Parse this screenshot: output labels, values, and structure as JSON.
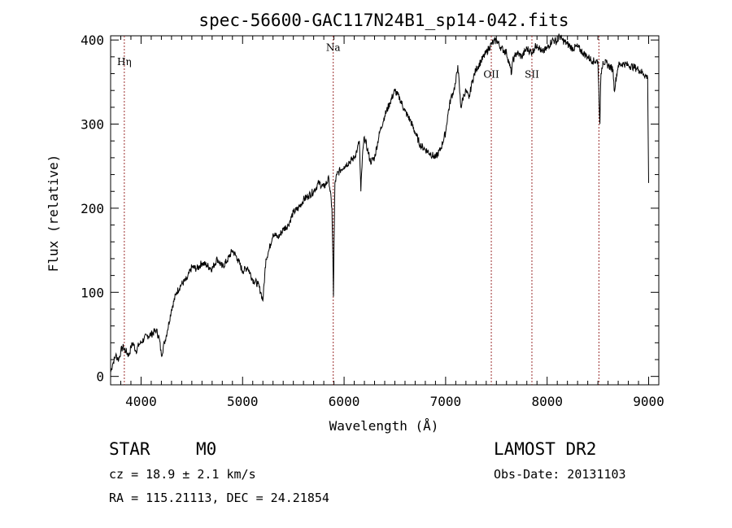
{
  "chart_data": {
    "type": "line",
    "title": "spec-56600-GAC117N24B1_sp14-042.fits",
    "xlabel": "Wavelength (Å)",
    "ylabel": "Flux (relative)",
    "xlim": [
      3700,
      9100
    ],
    "ylim": [
      -10,
      405
    ],
    "xticks": [
      4000,
      5000,
      6000,
      7000,
      8000,
      9000
    ],
    "xtick_labels": [
      "4000",
      "5000",
      "6000",
      "7000",
      "8000",
      "9000"
    ],
    "yticks": [
      0,
      100,
      200,
      300,
      400
    ],
    "ytick_labels": [
      "0",
      "100",
      "200",
      "300",
      "400"
    ],
    "grid": false,
    "line_color": "#000000",
    "marker_color": "#9b2d2d",
    "lines": [
      {
        "name": "Hη",
        "x": 3835,
        "label_y": 370
      },
      {
        "name": "Na",
        "x": 5893,
        "label_y": 387
      },
      {
        "name": "OII",
        "x": 7450,
        "label_y": 355
      },
      {
        "name": "SII",
        "x": 7850,
        "label_y": 355
      },
      {
        "name": "",
        "x": 8510,
        "label_y": 355
      }
    ],
    "series": [
      {
        "name": "flux",
        "x": [
          3700,
          3720,
          3750,
          3780,
          3800,
          3820,
          3850,
          3880,
          3900,
          3920,
          3950,
          3980,
          4000,
          4030,
          4060,
          4100,
          4150,
          4180,
          4200,
          4230,
          4260,
          4300,
          4350,
          4400,
          4450,
          4500,
          4550,
          4600,
          4650,
          4700,
          4750,
          4800,
          4850,
          4900,
          4950,
          5000,
          5050,
          5100,
          5150,
          5180,
          5200,
          5230,
          5260,
          5300,
          5350,
          5400,
          5450,
          5500,
          5550,
          5600,
          5650,
          5700,
          5750,
          5800,
          5850,
          5880,
          5890,
          5895,
          5900,
          5910,
          5930,
          5960,
          6000,
          6050,
          6100,
          6130,
          6150,
          6165,
          6180,
          6200,
          6230,
          6260,
          6300,
          6350,
          6400,
          6450,
          6500,
          6550,
          6600,
          6650,
          6700,
          6750,
          6800,
          6850,
          6900,
          6950,
          7000,
          7020,
          7050,
          7080,
          7100,
          7120,
          7150,
          7180,
          7200,
          7230,
          7260,
          7300,
          7350,
          7400,
          7450,
          7500,
          7550,
          7600,
          7630,
          7650,
          7660,
          7680,
          7700,
          7750,
          7800,
          7850,
          7900,
          7950,
          8000,
          8050,
          8100,
          8120,
          8150,
          8200,
          8250,
          8300,
          8350,
          8400,
          8450,
          8500,
          8520,
          8530,
          8550,
          8600,
          8650,
          8660,
          8700,
          8750,
          8800,
          8850,
          8900,
          8950,
          8990,
          9000
        ],
        "y": [
          5,
          15,
          25,
          20,
          30,
          35,
          30,
          25,
          35,
          40,
          30,
          38,
          40,
          45,
          48,
          50,
          55,
          45,
          25,
          40,
          55,
          80,
          100,
          110,
          115,
          130,
          128,
          135,
          132,
          128,
          140,
          130,
          138,
          150,
          140,
          125,
          130,
          115,
          110,
          100,
          90,
          140,
          150,
          170,
          165,
          175,
          180,
          195,
          200,
          210,
          215,
          220,
          230,
          225,
          235,
          200,
          140,
          95,
          150,
          230,
          240,
          245,
          250,
          255,
          260,
          270,
          280,
          220,
          260,
          285,
          270,
          255,
          260,
          290,
          310,
          325,
          340,
          330,
          315,
          305,
          290,
          275,
          270,
          265,
          260,
          270,
          290,
          310,
          330,
          340,
          350,
          370,
          320,
          335,
          340,
          330,
          350,
          365,
          375,
          385,
          395,
          400,
          390,
          385,
          370,
          360,
          375,
          380,
          385,
          380,
          390,
          385,
          395,
          385,
          390,
          400,
          398,
          405,
          400,
          395,
          390,
          392,
          385,
          380,
          375,
          375,
          300,
          360,
          375,
          370,
          365,
          340,
          370,
          372,
          370,
          368,
          365,
          360,
          355,
          230
        ]
      }
    ]
  },
  "info": {
    "object_class": "STAR",
    "subclass": "M0",
    "survey": "LAMOST DR2",
    "redshift": "cz = 18.9 ± 2.1 km/s",
    "obs_date": "Obs-Date: 20131103",
    "coords": "RA = 115.21113, DEC =  24.21854"
  }
}
